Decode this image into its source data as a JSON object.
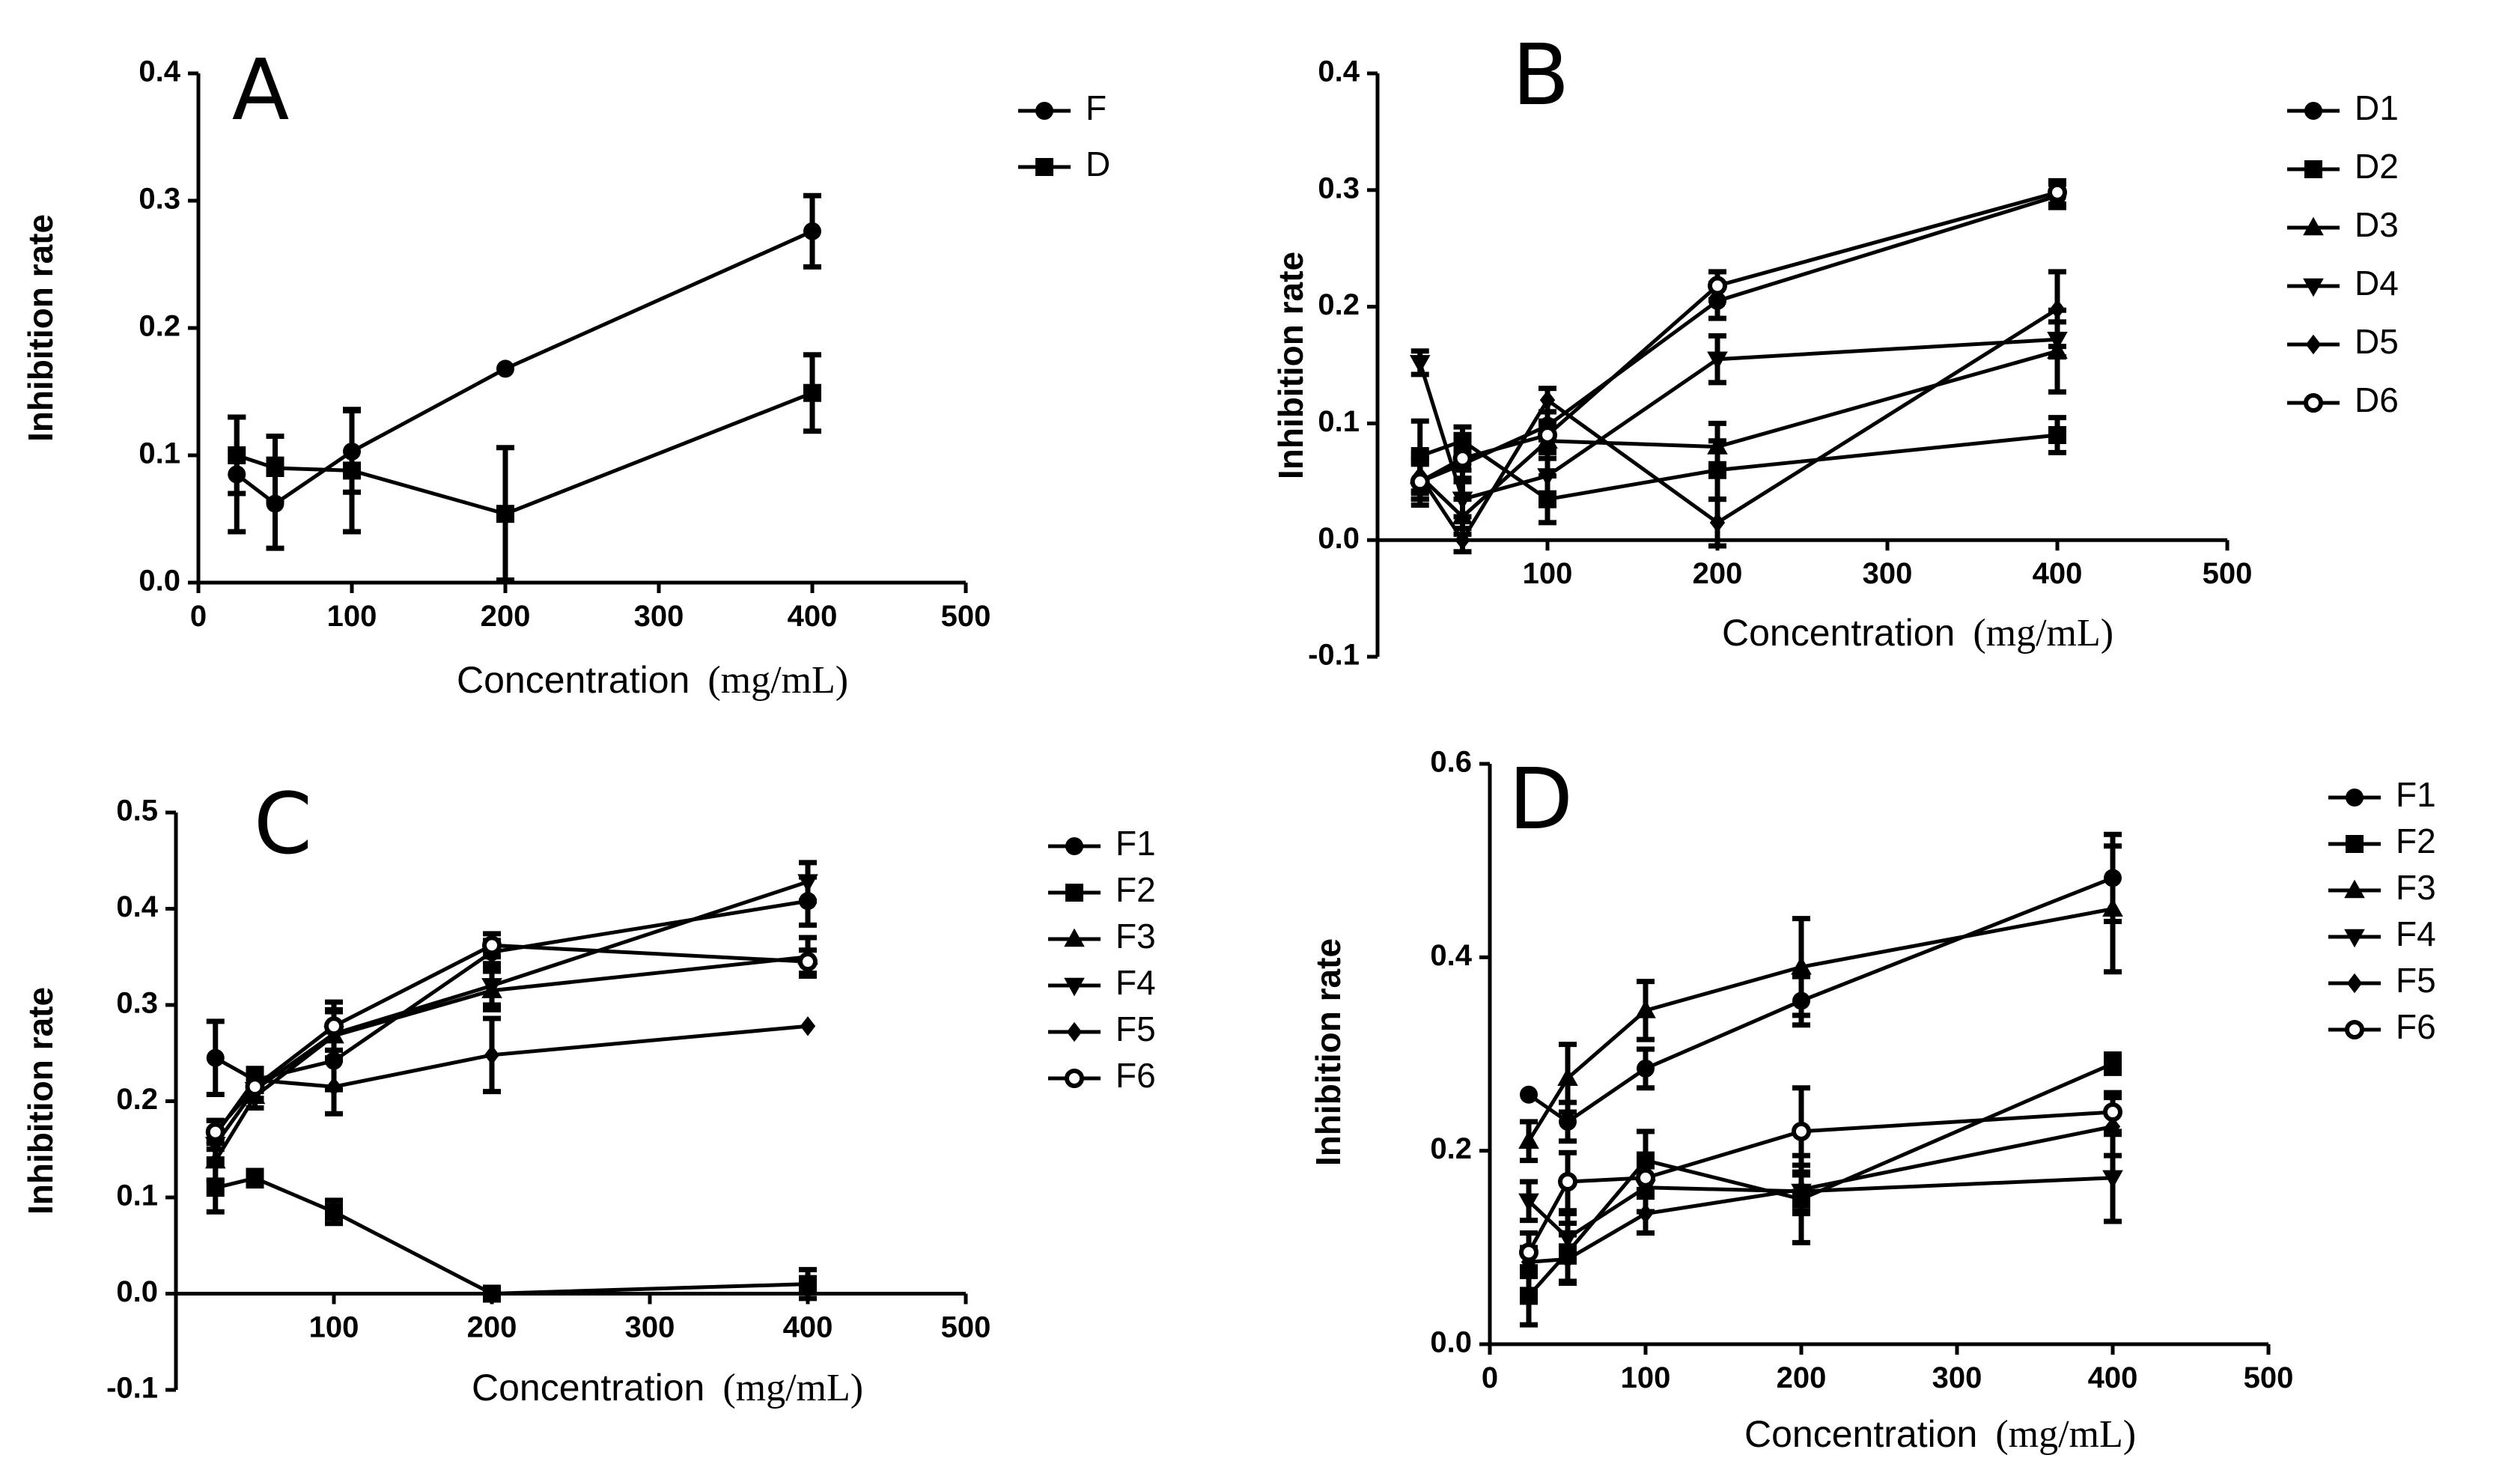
{
  "chart_data": [
    {
      "panel_label": "A",
      "type": "line",
      "xlabel_a": "Concentration",
      "xlabel_b": "(mg/mL)",
      "ylabel": "Inhibition rate",
      "xlim": [
        0,
        500
      ],
      "ylim": [
        0,
        0.4
      ],
      "xticks": [
        0,
        100,
        200,
        300,
        400,
        500
      ],
      "yticks": [
        0.0,
        0.1,
        0.2,
        0.3,
        0.4
      ],
      "ytick_labels": [
        "0.0",
        "0.1",
        "0.2",
        "0.3",
        "0.4"
      ],
      "x": [
        25,
        50,
        100,
        200,
        400
      ],
      "series": [
        {
          "name": "F",
          "marker": "circle",
          "values": [
            0.085,
            0.062,
            0.103,
            0.168,
            0.276
          ],
          "errors": [
            0.045,
            0.035,
            0.032,
            0.0,
            0.028
          ]
        },
        {
          "name": "D",
          "marker": "square",
          "values": [
            0.1,
            0.09,
            0.088,
            0.054,
            0.149
          ],
          "errors": [
            0.03,
            0.025,
            0.048,
            0.052,
            0.03
          ]
        }
      ]
    },
    {
      "panel_label": "B",
      "type": "line",
      "xlabel_a": "Concentration",
      "xlabel_b": "(mg/mL)",
      "ylabel": "Inhibition rate",
      "xlim": [
        0,
        500
      ],
      "ylim": [
        -0.1,
        0.4
      ],
      "xticks": [
        100,
        200,
        300,
        400,
        500
      ],
      "yticks": [
        -0.1,
        0.0,
        0.1,
        0.2,
        0.3,
        0.4
      ],
      "ytick_labels": [
        "-0.1",
        "0.0",
        "0.1",
        "0.2",
        "0.3",
        "0.4"
      ],
      "x": [
        25,
        50,
        100,
        200,
        400
      ],
      "series": [
        {
          "name": "D1",
          "marker": "circle",
          "values": [
            0.05,
            0.065,
            0.098,
            0.205,
            0.295
          ],
          "errors": [
            0.02,
            0.012,
            0.012,
            0.015,
            0.01
          ]
        },
        {
          "name": "D2",
          "marker": "square",
          "values": [
            0.072,
            0.085,
            0.035,
            0.06,
            0.09
          ],
          "errors": [
            0.03,
            0.012,
            0.02,
            0.025,
            0.015
          ]
        },
        {
          "name": "D3",
          "marker": "triangle-up",
          "values": [
            0.055,
            0.02,
            0.085,
            0.08,
            0.162
          ],
          "errors": [
            0.02,
            0.015,
            0.015,
            0.02,
            0.035
          ]
        },
        {
          "name": "D4",
          "marker": "triangle-down",
          "values": [
            0.152,
            0.035,
            0.055,
            0.155,
            0.172
          ],
          "errors": [
            0.01,
            0.015,
            0.02,
            0.02,
            0.015
          ]
        },
        {
          "name": "D5",
          "marker": "diamond",
          "values": [
            0.055,
            0.0,
            0.12,
            0.015,
            0.198
          ],
          "errors": [
            0.015,
            0.01,
            0.01,
            0.02,
            0.032
          ]
        },
        {
          "name": "D6",
          "marker": "circle-open",
          "values": [
            0.05,
            0.07,
            0.09,
            0.218,
            0.298
          ],
          "errors": [
            0.015,
            0.01,
            0.012,
            0.012,
            0.01
          ]
        }
      ]
    },
    {
      "panel_label": "C",
      "type": "line",
      "xlabel_a": "Concentration",
      "xlabel_b": "(mg/mL)",
      "ylabel": "Inhibition rate",
      "xlim": [
        0,
        500
      ],
      "ylim": [
        -0.1,
        0.5
      ],
      "xticks": [
        100,
        200,
        300,
        400,
        500
      ],
      "yticks": [
        -0.1,
        0.0,
        0.1,
        0.2,
        0.3,
        0.4,
        0.5
      ],
      "ytick_labels": [
        "-0.1",
        "0.0",
        "0.1",
        "0.2",
        "0.3",
        "0.4",
        "0.5"
      ],
      "x": [
        25,
        50,
        100,
        200,
        400
      ],
      "series": [
        {
          "name": "F1",
          "marker": "circle",
          "values": [
            0.245,
            0.222,
            0.242,
            0.355,
            0.408
          ],
          "errors": [
            0.038,
            0.012,
            0.03,
            0.012,
            0.025
          ]
        },
        {
          "name": "F2",
          "marker": "square",
          "values": [
            0.11,
            0.12,
            0.085,
            0.0,
            0.01
          ],
          "errors": [
            0.025,
            0.008,
            0.012,
            0.005,
            0.015
          ]
        },
        {
          "name": "F3",
          "marker": "triangle-up",
          "values": [
            0.138,
            0.205,
            0.268,
            0.315,
            0.35
          ],
          "errors": [
            0.02,
            0.012,
            0.025,
            0.02,
            0.02
          ]
        },
        {
          "name": "F4",
          "marker": "triangle-down",
          "values": [
            0.155,
            0.212,
            0.27,
            0.32,
            0.428
          ],
          "errors": [
            0.015,
            0.012,
            0.025,
            0.02,
            0.02
          ]
        },
        {
          "name": "F5",
          "marker": "diamond",
          "values": [
            0.165,
            0.222,
            0.215,
            0.248,
            0.278
          ],
          "errors": [
            0.015,
            0.01,
            0.028,
            0.038,
            0.0
          ]
        },
        {
          "name": "F6",
          "marker": "circle-open",
          "values": [
            0.168,
            0.215,
            0.278,
            0.362,
            0.345
          ],
          "errors": [
            0.012,
            0.012,
            0.025,
            0.012,
            0.012
          ]
        }
      ]
    },
    {
      "panel_label": "D",
      "type": "line",
      "xlabel_a": "Concentration",
      "xlabel_b": "(mg/mL)",
      "ylabel": "Inhibition rate",
      "xlim": [
        0,
        500
      ],
      "ylim": [
        0,
        0.6
      ],
      "xticks": [
        0,
        100,
        200,
        300,
        400,
        500
      ],
      "yticks": [
        0.0,
        0.2,
        0.4,
        0.6
      ],
      "ytick_labels": [
        "0.0",
        "0.2",
        "0.4",
        "0.6"
      ],
      "x": [
        25,
        50,
        100,
        200,
        400
      ],
      "series": [
        {
          "name": "F1",
          "marker": "circle",
          "values": [
            0.258,
            0.23,
            0.285,
            0.355,
            0.482
          ],
          "errors": [
            0.0,
            0.02,
            0.02,
            0.025,
            0.045
          ]
        },
        {
          "name": "F2",
          "marker": "square",
          "values": [
            0.05,
            0.095,
            0.19,
            0.15,
            0.29
          ],
          "errors": [
            0.03,
            0.03,
            0.03,
            0.045,
            0.01
          ]
        },
        {
          "name": "F3",
          "marker": "triangle-up",
          "values": [
            0.21,
            0.275,
            0.345,
            0.39,
            0.45
          ],
          "errors": [
            0.02,
            0.035,
            0.03,
            0.05,
            0.065
          ]
        },
        {
          "name": "F4",
          "marker": "triangle-down",
          "values": [
            0.148,
            0.11,
            0.162,
            0.158,
            0.172
          ],
          "errors": [
            0.02,
            0.025,
            0.025,
            0.02,
            0.045
          ]
        },
        {
          "name": "F5",
          "marker": "diamond",
          "values": [
            0.085,
            0.088,
            0.135,
            0.16,
            0.225
          ],
          "errors": [
            0.015,
            0.025,
            0.02,
            0.025,
            0.03
          ]
        },
        {
          "name": "F6",
          "marker": "circle-open",
          "values": [
            0.095,
            0.168,
            0.172,
            0.22,
            0.24
          ],
          "errors": [
            0.02,
            0.03,
            0.02,
            0.045,
            0.02
          ]
        }
      ]
    }
  ]
}
